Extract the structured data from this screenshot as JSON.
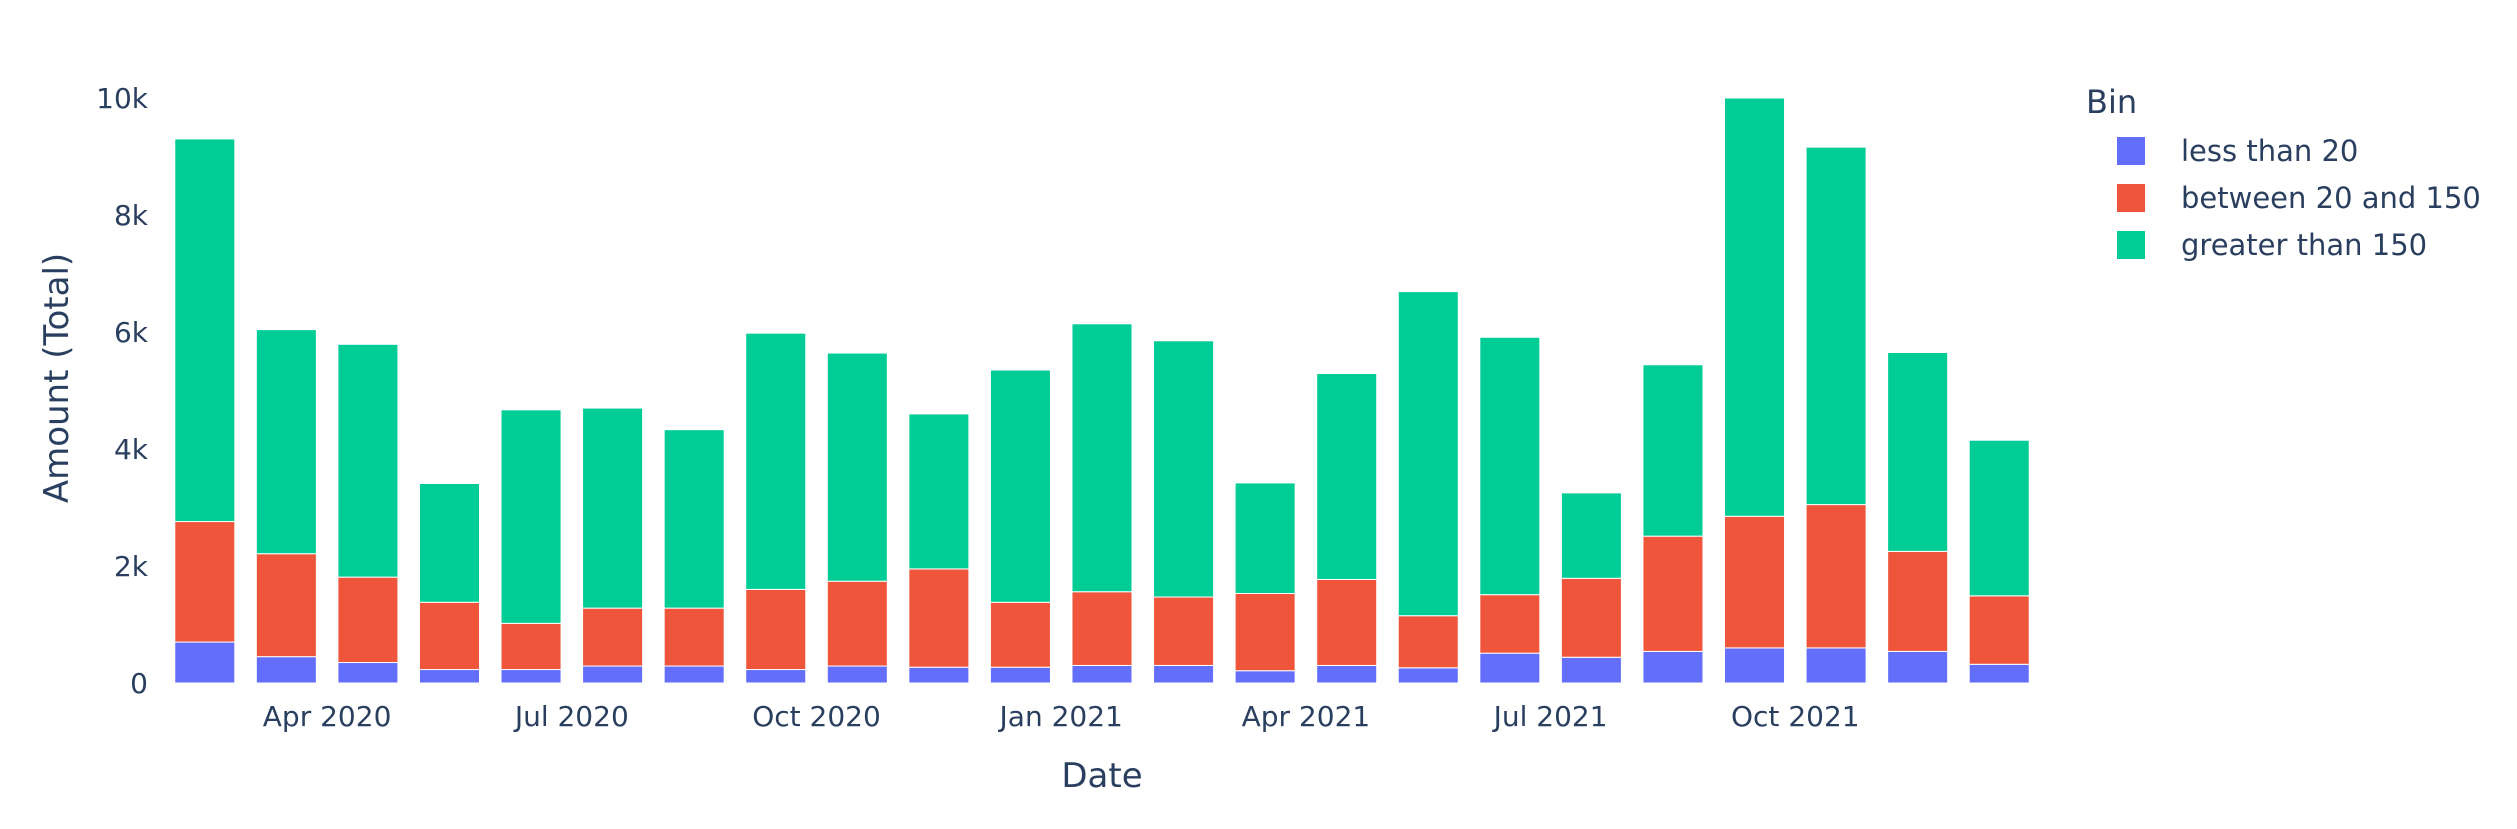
{
  "chart_data": {
    "type": "bar",
    "barmode": "stack",
    "x": [
      "2020-02",
      "2020-03",
      "2020-04",
      "2020-05",
      "2020-06",
      "2020-07",
      "2020-08",
      "2020-09",
      "2020-10",
      "2020-11",
      "2020-12",
      "2021-01",
      "2021-02",
      "2021-03",
      "2021-04",
      "2021-05",
      "2021-06",
      "2021-07",
      "2021-08",
      "2021-09",
      "2021-10",
      "2021-11",
      "2021-12"
    ],
    "x_tick_labels": [
      {
        "date": "2020-04",
        "label": "Apr 2020"
      },
      {
        "date": "2020-07",
        "label": "Jul 2020"
      },
      {
        "date": "2020-10",
        "label": "Oct 2020"
      },
      {
        "date": "2021-01",
        "label": "Jan 2021"
      },
      {
        "date": "2021-04",
        "label": "Apr 2021"
      },
      {
        "date": "2021-07",
        "label": "Jul 2021"
      },
      {
        "date": "2021-10",
        "label": "Oct 2021"
      }
    ],
    "series": [
      {
        "name": "less than 20",
        "color": "#636efa",
        "values": [
          700,
          450,
          350,
          230,
          230,
          290,
          290,
          230,
          290,
          270,
          270,
          300,
          300,
          210,
          300,
          260,
          510,
          440,
          540,
          600,
          600,
          540,
          320
        ]
      },
      {
        "name": "between 20 and 150",
        "color": "#ef553b",
        "values": [
          2060,
          1760,
          1460,
          1150,
          790,
          990,
          990,
          1370,
          1450,
          1680,
          1110,
          1260,
          1170,
          1320,
          1470,
          890,
          1000,
          1350,
          1970,
          2250,
          2450,
          1710,
          1170
        ]
      },
      {
        "name": "greater than 150",
        "color": "#00cc96",
        "values": [
          6540,
          3830,
          3980,
          2030,
          3650,
          3420,
          3050,
          4380,
          3900,
          2650,
          3970,
          4580,
          4380,
          1890,
          3520,
          5540,
          4400,
          1460,
          2930,
          7150,
          6110,
          3400,
          2660
        ]
      }
    ],
    "xlabel": "Date",
    "ylabel": "Amount (Total)",
    "ylim": [
      0,
      10000
    ],
    "y_ticks": [
      0,
      2000,
      4000,
      6000,
      8000,
      10000
    ],
    "y_tick_labels": [
      "0",
      "2k",
      "4k",
      "6k",
      "8k",
      "10k"
    ],
    "legend_title": "Bin",
    "legend_placement": "top-right, outside plot",
    "grid": false
  }
}
